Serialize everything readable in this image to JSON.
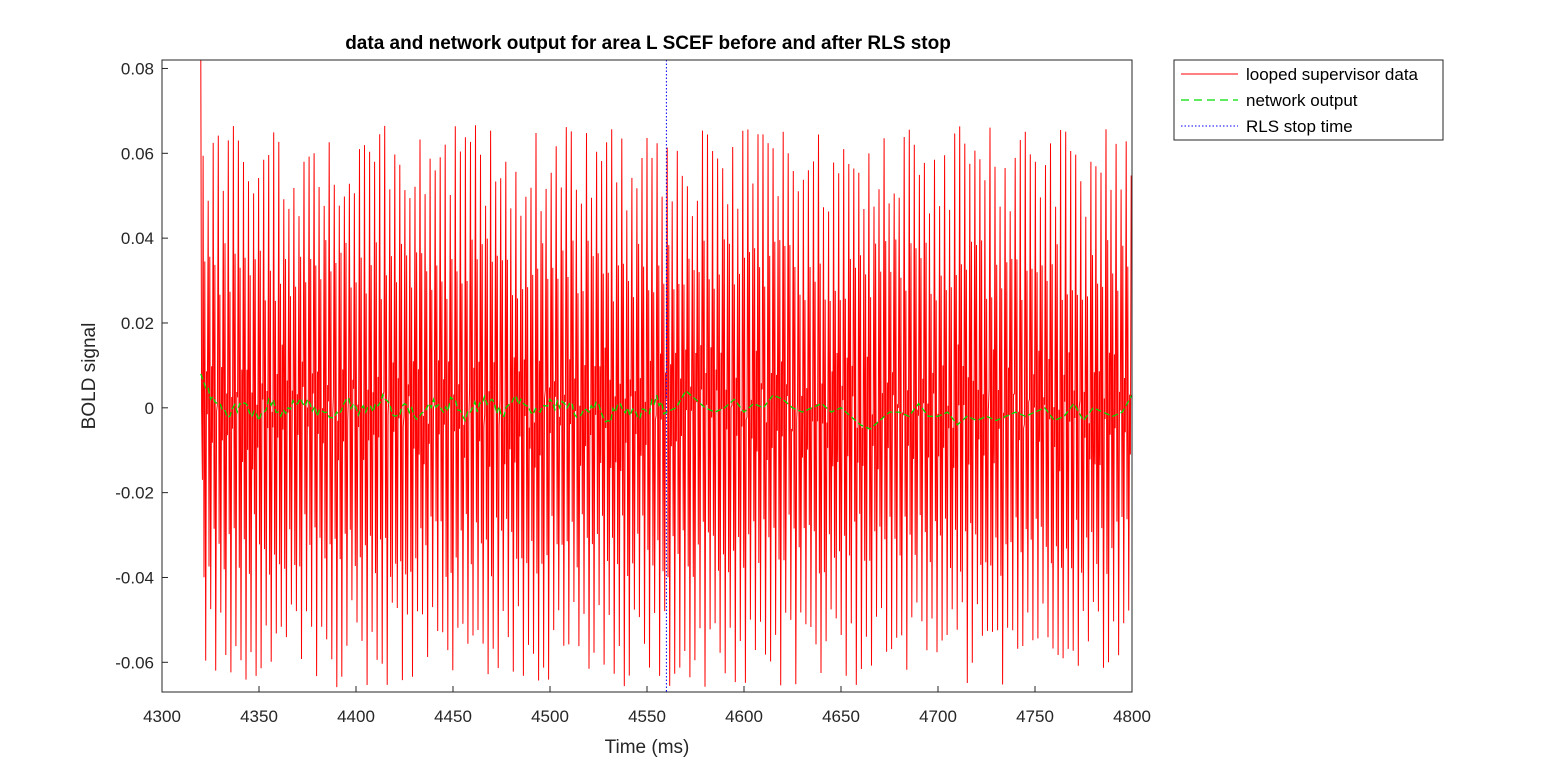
{
  "chart_data": {
    "type": "line",
    "title": "data and network output for area L SCEF before and after RLS stop",
    "xlabel": "Time (ms)",
    "ylabel": "BOLD signal",
    "xlim": [
      4300,
      4800
    ],
    "ylim": [
      -0.067,
      0.082
    ],
    "xticks": [
      4300,
      4350,
      4400,
      4450,
      4500,
      4550,
      4600,
      4650,
      4700,
      4750,
      4800
    ],
    "yticks": [
      -0.06,
      -0.04,
      -0.02,
      0,
      0.02,
      0.04,
      0.06,
      0.08
    ],
    "xtick_labels": [
      "4300",
      "4350",
      "4400",
      "4450",
      "4500",
      "4550",
      "4600",
      "4650",
      "4700",
      "4750",
      "4800"
    ],
    "ytick_labels": [
      "-0.06",
      "-0.04",
      "-0.02",
      "0",
      "0.02",
      "0.04",
      "0.06",
      "0.08"
    ],
    "grid": false,
    "legend_position": "outside-top-right",
    "series": [
      {
        "name": "looped supervisor data",
        "style": "solid",
        "color": "#ff0000",
        "x_range": [
          4320,
          4800
        ],
        "description": "oscillating supervisor signal, peak every ~2.6 ms, envelope roughly -0.065 to 0.067",
        "peak_period_ms": 2.6,
        "typical_peak_max": [
          0.045,
          0.067
        ],
        "typical_trough_min": [
          -0.066,
          -0.045
        ]
      },
      {
        "name": "network output",
        "style": "dashed",
        "color": "#00cc00",
        "x": [
          4320,
          4325,
          4330,
          4335,
          4340,
          4345,
          4350,
          4355,
          4360,
          4365,
          4370,
          4375,
          4380,
          4385,
          4390,
          4395,
          4400,
          4405,
          4410,
          4415,
          4420,
          4425,
          4430,
          4435,
          4440,
          4445,
          4450,
          4455,
          4460,
          4465,
          4470,
          4475,
          4480,
          4485,
          4490,
          4495,
          4500,
          4505,
          4510,
          4515,
          4520,
          4525,
          4530,
          4535,
          4540,
          4545,
          4550,
          4555,
          4560,
          4565,
          4570,
          4575,
          4580,
          4585,
          4590,
          4595,
          4600,
          4605,
          4610,
          4615,
          4620,
          4625,
          4630,
          4635,
          4640,
          4645,
          4650,
          4655,
          4660,
          4665,
          4670,
          4675,
          4680,
          4685,
          4690,
          4695,
          4700,
          4705,
          4710,
          4715,
          4720,
          4725,
          4730,
          4735,
          4740,
          4745,
          4750,
          4755,
          4760,
          4765,
          4770,
          4775,
          4780,
          4785,
          4790,
          4795,
          4800
        ],
        "y": [
          0.008,
          0.002,
          0.001,
          -0.002,
          0.001,
          -0.001,
          -0.003,
          0.002,
          -0.001,
          0.0,
          0.001,
          0.002,
          -0.002,
          -0.001,
          -0.001,
          0.002,
          0.0,
          -0.001,
          0.001,
          0.002,
          -0.002,
          0.001,
          -0.002,
          -0.001,
          0.002,
          -0.001,
          0.002,
          -0.002,
          0.0,
          0.001,
          0.002,
          -0.002,
          0.001,
          0.002,
          -0.001,
          -0.001,
          0.002,
          0.0,
          0.001,
          -0.002,
          -0.001,
          0.001,
          -0.003,
          0.001,
          0.0,
          -0.002,
          -0.001,
          0.003,
          -0.001,
          0.0,
          0.004,
          0.002,
          0.0,
          -0.001,
          0.0,
          0.002,
          -0.001,
          0.001,
          0.0,
          0.003,
          0.002,
          0.0,
          -0.001,
          0.0,
          0.001,
          -0.001,
          0.0,
          -0.002,
          -0.004,
          -0.005,
          -0.003,
          -0.001,
          -0.001,
          -0.002,
          0.001,
          -0.002,
          -0.002,
          -0.001,
          -0.004,
          -0.002,
          -0.003,
          -0.002,
          -0.003,
          -0.002,
          -0.001,
          -0.002,
          -0.001,
          0.0,
          -0.003,
          -0.002,
          0.001,
          -0.003,
          0.0,
          -0.001,
          -0.002,
          -0.001,
          0.003
        ]
      },
      {
        "name": "RLS stop time",
        "style": "dotted",
        "color": "#0000ff",
        "vertical_line_x": 4560
      }
    ]
  }
}
